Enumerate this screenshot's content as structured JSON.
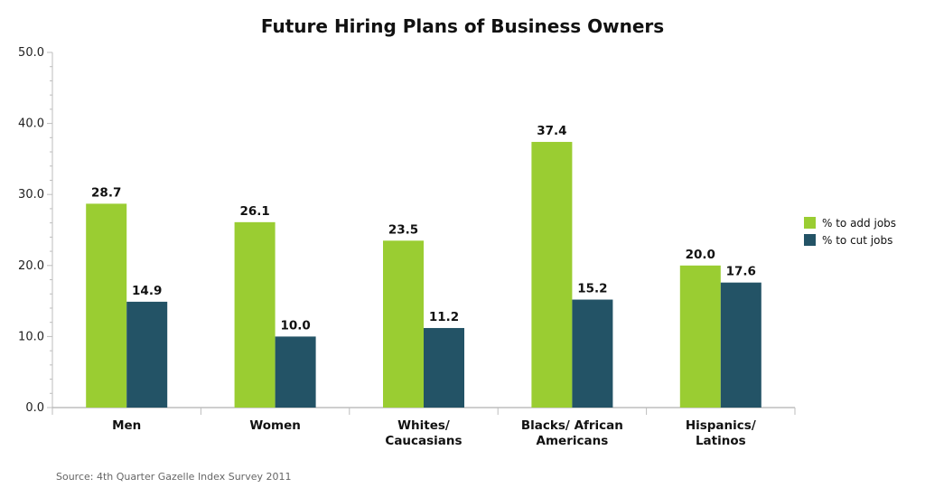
{
  "chart_data": {
    "type": "bar",
    "title": "Future Hiring Plans of Business Owners",
    "categories": [
      [
        "Men"
      ],
      [
        "Women"
      ],
      [
        "Whites/",
        "Caucasians"
      ],
      [
        "Blacks/ African",
        "Americans"
      ],
      [
        "Hispanics/",
        "Latinos"
      ]
    ],
    "series": [
      {
        "name": "% to add jobs",
        "color": "#9ACD32",
        "values": [
          28.7,
          26.1,
          23.5,
          37.4,
          20.0
        ]
      },
      {
        "name": "% to cut jobs",
        "color": "#235366",
        "values": [
          14.9,
          10.0,
          11.2,
          15.2,
          17.6
        ]
      }
    ],
    "ylim": [
      0,
      50
    ],
    "yticks": [
      "0.0",
      "10.0",
      "20.0",
      "30.0",
      "40.0",
      "50.0"
    ],
    "legend": "right",
    "grid": false,
    "source": "Source: 4th Quarter Gazelle Index Survey 2011"
  }
}
